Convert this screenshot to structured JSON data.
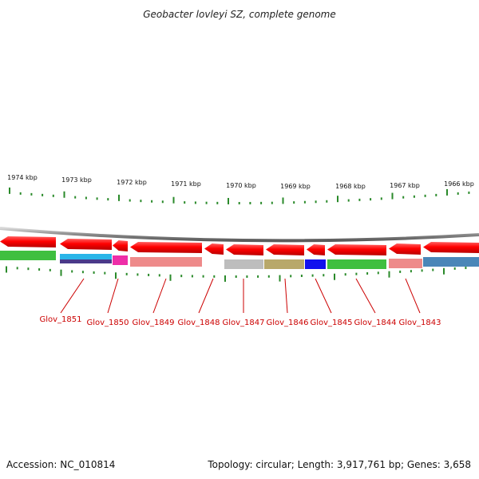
{
  "title": "Geobacter lovleyi SZ, complete genome",
  "footer": {
    "accession": "Accession: NC_010814",
    "summary": "Topology: circular; Length: 3,917,761 bp; Genes: 3,658"
  },
  "scale_labels": [
    "1974 kbp",
    "1973 kbp",
    "1972 kbp",
    "1971 kbp",
    "1970 kbp",
    "1969 kbp",
    "1968 kbp",
    "1967 kbp",
    "1966 kbp"
  ],
  "gene_labels": [
    "Glov_1851",
    "Glov_1850",
    "Glov_1849",
    "Glov_1848",
    "Glov_1847",
    "Glov_1846",
    "Glov_1845",
    "Glov_1844",
    "Glov_1843"
  ],
  "colors": {
    "gene_forward": "#ee1111",
    "backbone": "#8a8a8a",
    "tick": "#2a8a2a",
    "label": "#cc0000",
    "cog": [
      "#3fbf3f",
      "#2ab5e8",
      "#ee2ea8",
      "#ee8a8a",
      "#bdbdbd",
      "#b8a86a",
      "#1111ee",
      "#3fbf3f",
      "#ee8a8a",
      "#4a86b8"
    ]
  }
}
